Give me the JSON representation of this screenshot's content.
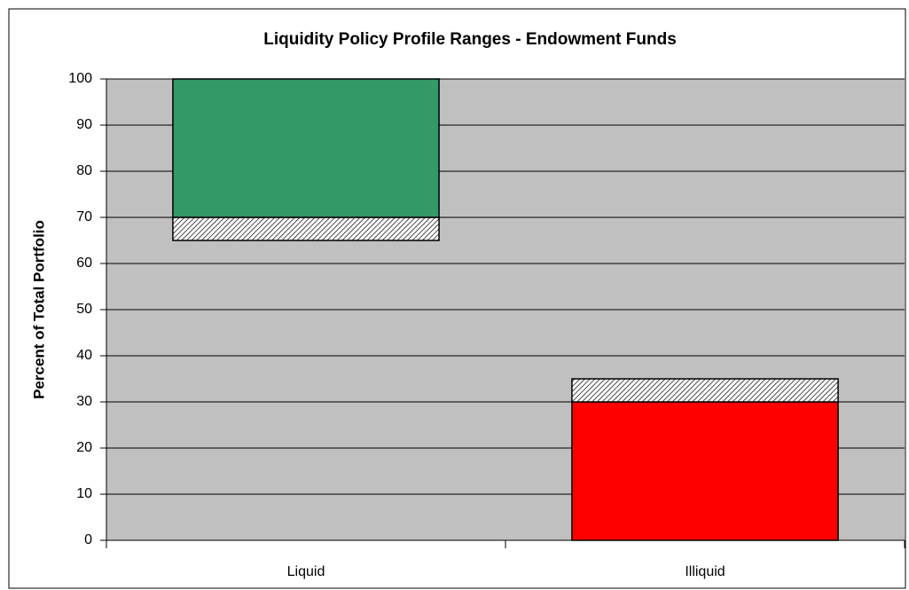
{
  "chart_data": {
    "type": "floating_stacked_bar",
    "title": "Liquidity Policy Profile Ranges - Endowment Funds",
    "y_label": "Percent of Total Portfolio",
    "categories": [
      "Liquid",
      "Illiquid"
    ],
    "series": [
      {
        "color": "none",
        "values": [
          65,
          0
        ]
      },
      {
        "colors": [
          "hatch",
          "#ff0000"
        ],
        "values": [
          5,
          30
        ]
      },
      {
        "colors": [
          "#339966",
          "hatch"
        ],
        "values": [
          30,
          5
        ]
      }
    ],
    "ylim": [
      0,
      100
    ],
    "yticks": [
      0,
      10,
      20,
      30,
      40,
      50,
      60,
      70,
      80,
      90,
      100
    ],
    "grid": true,
    "plot_background": "#c0c0c0"
  }
}
